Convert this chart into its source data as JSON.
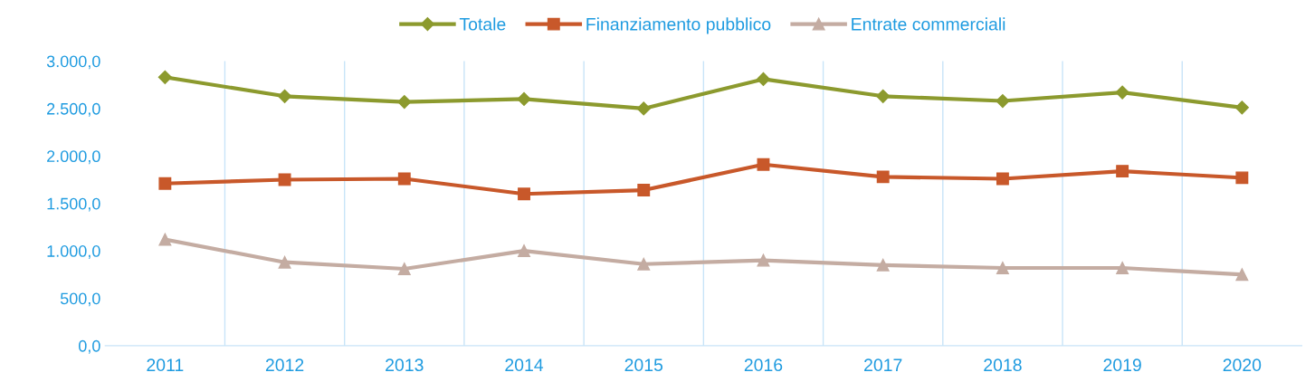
{
  "chart_data": {
    "type": "line",
    "categories": [
      "2011",
      "2012",
      "2013",
      "2014",
      "2015",
      "2016",
      "2017",
      "2018",
      "2019",
      "2020"
    ],
    "series": [
      {
        "name": "Totale",
        "color": "#8c9a2e",
        "marker": "diamond",
        "values": [
          2830,
          2630,
          2570,
          2600,
          2500,
          2810,
          2630,
          2580,
          2670,
          2510
        ]
      },
      {
        "name": "Finanziamento pubblico",
        "color": "#c8582a",
        "marker": "square",
        "values": [
          1710,
          1750,
          1760,
          1600,
          1640,
          1910,
          1780,
          1760,
          1840,
          1770
        ]
      },
      {
        "name": "Entrate commerciali",
        "color": "#c4aca2",
        "marker": "triangle",
        "values": [
          1120,
          880,
          810,
          1000,
          860,
          900,
          850,
          820,
          820,
          750
        ]
      }
    ],
    "ylim": [
      0,
      3000
    ],
    "yticks": [
      {
        "value": 0,
        "label": "0,0"
      },
      {
        "value": 500,
        "label": "500,0"
      },
      {
        "value": 1000,
        "label": "1.000,0"
      },
      {
        "value": 1500,
        "label": "1.500,0"
      },
      {
        "value": 2000,
        "label": "2.000,0"
      },
      {
        "value": 2500,
        "label": "2.500,0"
      },
      {
        "value": 3000,
        "label": "3.000,0"
      }
    ],
    "grid": "x",
    "legend": "top",
    "line_style": "solid"
  }
}
